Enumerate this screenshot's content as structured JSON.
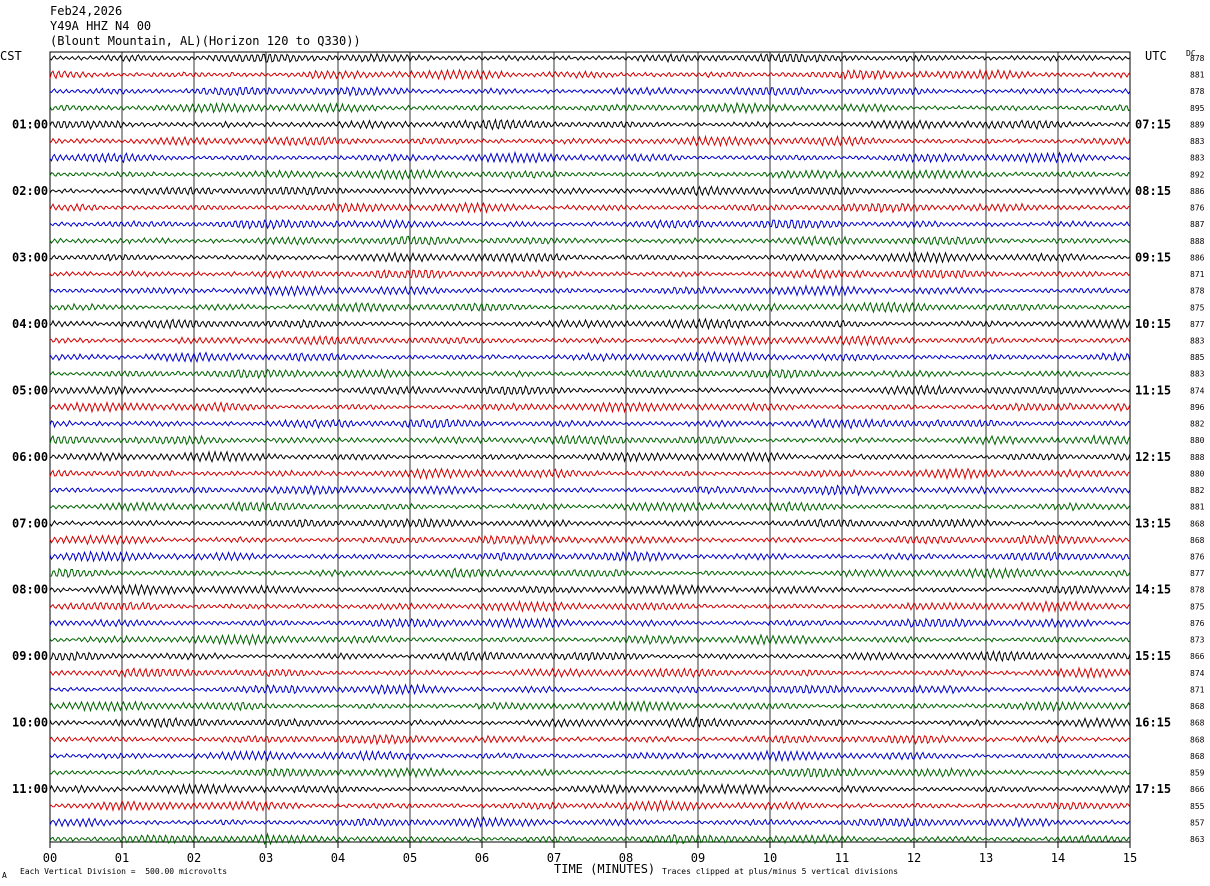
{
  "header": {
    "date": "Feb24,2026",
    "station": "Y49A HHZ N4 00",
    "location": "(Blount Mountain, AL)(Horizon 120 to Q330))"
  },
  "left_tz": "CST",
  "right_tz": "UTC",
  "dc_label": "DC",
  "left_times": [
    "01:00",
    "02:00",
    "03:00",
    "04:00",
    "05:00",
    "06:00",
    "07:00",
    "08:00",
    "09:00",
    "10:00",
    "11:00"
  ],
  "right_times": [
    "07:15",
    "08:15",
    "09:15",
    "10:15",
    "11:15",
    "12:15",
    "13:15",
    "14:15",
    "15:15",
    "16:15",
    "17:15"
  ],
  "dc_values": [
    "878",
    "881",
    "878",
    "895",
    "889",
    "883",
    "883",
    "892",
    "886",
    "876",
    "887",
    "888",
    "886",
    "871",
    "878",
    "875",
    "877",
    "883",
    "885",
    "883",
    "874",
    "896",
    "882",
    "880",
    "888",
    "880",
    "882",
    "881",
    "868",
    "868",
    "876",
    "877",
    "878",
    "875",
    "876",
    "873",
    "866",
    "874",
    "871",
    "868",
    "868",
    "868",
    "868",
    "859",
    "866",
    "855",
    "857",
    "863"
  ],
  "minute_ticks": [
    "00",
    "01",
    "02",
    "03",
    "04",
    "05",
    "06",
    "07",
    "08",
    "09",
    "10",
    "11",
    "12",
    "13",
    "14",
    "15"
  ],
  "x_axis_title": "TIME (MINUTES)",
  "footer_scale": "Each Vertical Division =  500.00 microvolts",
  "footer_clip": "Traces clipped at plus/minus 5 vertical divisions",
  "corner_mark": "A",
  "trace_colors": [
    "#000000",
    "#d40000",
    "#0000cc",
    "#006400"
  ],
  "chart_data": {
    "type": "line",
    "traces_per_hour": 4,
    "trace_count": 48,
    "x_range_minutes": [
      0,
      15
    ]
  }
}
